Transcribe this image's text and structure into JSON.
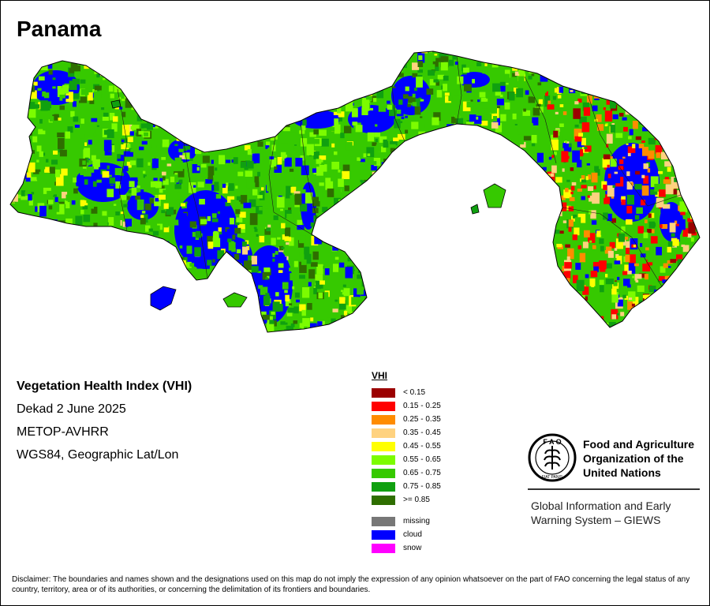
{
  "map": {
    "title": "Panama",
    "vhi_title": "Vegetation Health Index (VHI)",
    "dekad": "Dekad 2 June 2025",
    "sensor": "METOP-AVHRR",
    "projection": "WGS84, Geographic Lat/Lon"
  },
  "legend": {
    "title": "VHI",
    "classes": [
      {
        "label": "< 0.15",
        "color": "#9b0000"
      },
      {
        "label": "0.15 - 0.25",
        "color": "#ff0000"
      },
      {
        "label": "0.25 - 0.35",
        "color": "#ff8c00"
      },
      {
        "label": "0.35 - 0.45",
        "color": "#ffd27f"
      },
      {
        "label": "0.45 - 0.55",
        "color": "#ffff00"
      },
      {
        "label": "0.55 - 0.65",
        "color": "#7cfc00"
      },
      {
        "label": "0.65 - 0.75",
        "color": "#36c900"
      },
      {
        "label": "0.75 - 0.85",
        "color": "#10a010"
      },
      {
        "label": ">= 0.85",
        "color": "#2e6e00"
      }
    ],
    "other": [
      {
        "label": "missing",
        "color": "#777777"
      },
      {
        "label": "cloud",
        "color": "#0000ff"
      },
      {
        "label": "snow",
        "color": "#ff00ff"
      }
    ]
  },
  "org": {
    "logo_text": "FAO",
    "logo_motto": "FIAT PANIS",
    "name_lines": [
      "Food and Agriculture",
      "Organization of the",
      "United Nations"
    ],
    "system_lines": [
      "Global Information and Early",
      "Warning System – GIEWS"
    ]
  },
  "disclaimer": "Disclaimer: The boundaries and names shown and the designations used on this map do not imply the expression of any opinion whatsoever on the part of FAO concerning the legal status of any country, territory, area or of its authorities, or concerning the delimitation of its frontiers and boundaries."
}
